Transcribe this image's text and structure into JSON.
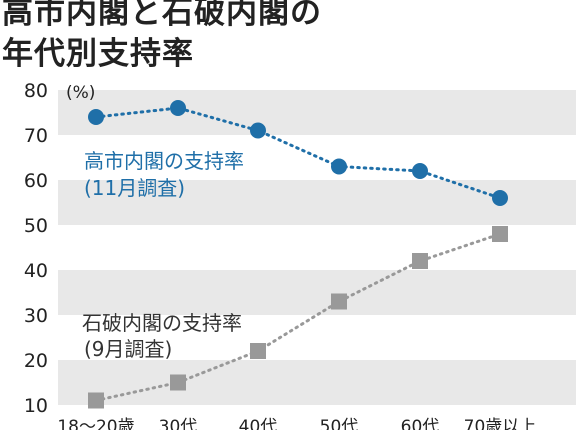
{
  "title": [
    "高市内閣と石破内閣の",
    "年代別支持率"
  ],
  "colors": {
    "takaichi": "#1f6fa8",
    "ishiba": "#999999",
    "band": "#e8e8e8"
  },
  "chart_data": {
    "type": "line",
    "title": "高市内閣と石破内閣の年代別支持率",
    "categories": [
      "18〜20歳",
      "30代",
      "40代",
      "50代",
      "60代",
      "70歳以上"
    ],
    "ylim": [
      10,
      80
    ],
    "yticks": [
      10,
      20,
      30,
      40,
      50,
      60,
      70,
      80
    ],
    "yunit": "(%)",
    "grid": "alternating horizontal bands",
    "series": [
      {
        "name": "高市内閣の支持率",
        "note": "(11月調査)",
        "marker": "circle",
        "color": "#1f6fa8",
        "values": [
          74,
          76,
          71,
          63,
          62,
          56
        ]
      },
      {
        "name": "石破内閣の支持率",
        "note": "(9月調査)",
        "marker": "square",
        "color": "#999999",
        "values": [
          11,
          15,
          22,
          33,
          42,
          48
        ]
      }
    ]
  }
}
